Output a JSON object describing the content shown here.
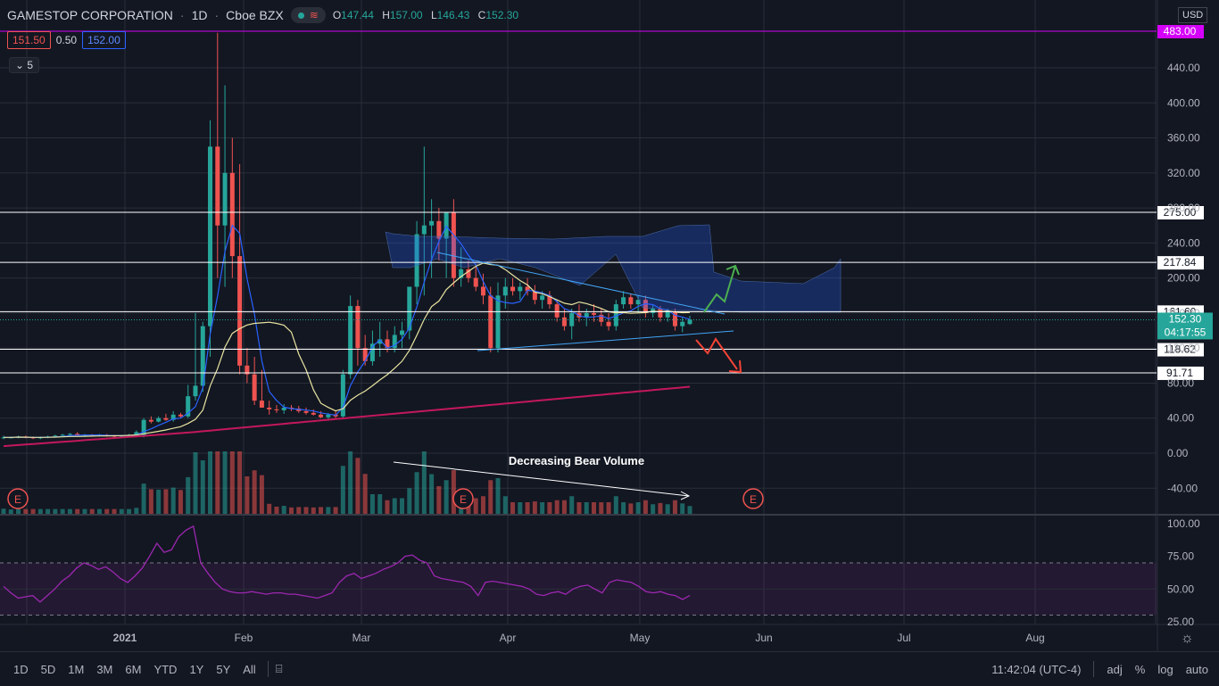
{
  "header": {
    "symbol": "GAMESTOP CORPORATION",
    "interval": "1D",
    "exchange": "Cboe BZX",
    "ohlc": {
      "o_label": "O",
      "o": "147.44",
      "h_label": "H",
      "h": "157.00",
      "l_label": "L",
      "l": "146.43",
      "c_label": "C",
      "c": "152.30"
    }
  },
  "quote": {
    "bid": "151.50",
    "spread": "0.50",
    "ask": "152.00"
  },
  "indicators_collapsed_count": "5",
  "currency": "USD",
  "colors": {
    "background": "#131722",
    "up": "#26a69a",
    "down": "#ef5350",
    "grid": "#2a2e39",
    "ma_fast": "#2962ff",
    "ma_mid": "#e8e4a0",
    "ma_slow": "#c2185b",
    "rsi": "#9c27b0",
    "annotation_up": "#4caf50",
    "annotation_down": "#f44336"
  },
  "annotation": "Decreasing Bear Volume",
  "earnings_marker": "E",
  "chart_data": {
    "type": "candlestick",
    "price_axis": {
      "ticks": [
        "440.00",
        "400.00",
        "360.00",
        "320.00",
        "280.00",
        "240.00",
        "200.00",
        "160.00",
        "120.00",
        "80.00",
        "40.00",
        "0.00",
        "-40.00"
      ],
      "range": [
        -70,
        500
      ]
    },
    "horizontal_levels": [
      {
        "label": "483.00",
        "color": "#d500f9"
      },
      {
        "label": "275.00",
        "color": "#ffffff"
      },
      {
        "label": "217.84",
        "color": "#ffffff"
      },
      {
        "label": "161.60",
        "color": "#ffffff"
      },
      {
        "label": "118.62",
        "color": "#ffffff"
      },
      {
        "label": "91.71",
        "color": "#ffffff"
      }
    ],
    "last_price": {
      "value": "152.30",
      "countdown": "04:17:55"
    },
    "rsi_axis": {
      "ticks": [
        "100.00",
        "75.00",
        "50.00",
        "25.00"
      ],
      "overbought": 70,
      "oversold": 30
    },
    "time_axis": [
      "2021",
      "Feb",
      "Mar",
      "Apr",
      "May",
      "Jun",
      "Jul",
      "Aug"
    ],
    "series": [
      {
        "name": "GME daily",
        "values": [
          {
            "o": 17,
            "h": 20,
            "l": 16,
            "c": 18
          },
          {
            "o": 18,
            "h": 19,
            "l": 17,
            "c": 18
          },
          {
            "o": 18,
            "h": 20,
            "l": 17,
            "c": 19
          },
          {
            "o": 19,
            "h": 20,
            "l": 17,
            "c": 18
          },
          {
            "o": 18,
            "h": 19,
            "l": 16,
            "c": 17
          },
          {
            "o": 17,
            "h": 19,
            "l": 16,
            "c": 18
          },
          {
            "o": 18,
            "h": 20,
            "l": 17,
            "c": 19
          },
          {
            "o": 19,
            "h": 21,
            "l": 18,
            "c": 20
          },
          {
            "o": 20,
            "h": 22,
            "l": 19,
            "c": 21
          },
          {
            "o": 21,
            "h": 23,
            "l": 20,
            "c": 22
          },
          {
            "o": 22,
            "h": 24,
            "l": 21,
            "c": 20
          },
          {
            "o": 20,
            "h": 22,
            "l": 19,
            "c": 21
          },
          {
            "o": 21,
            "h": 22,
            "l": 19,
            "c": 20
          },
          {
            "o": 20,
            "h": 22,
            "l": 19,
            "c": 21
          },
          {
            "o": 21,
            "h": 22,
            "l": 19,
            "c": 20
          },
          {
            "o": 20,
            "h": 21,
            "l": 18,
            "c": 19
          },
          {
            "o": 19,
            "h": 21,
            "l": 18,
            "c": 20
          },
          {
            "o": 20,
            "h": 22,
            "l": 19,
            "c": 21
          },
          {
            "o": 21,
            "h": 26,
            "l": 20,
            "c": 24
          },
          {
            "o": 19,
            "h": 40,
            "l": 18,
            "c": 38
          },
          {
            "o": 38,
            "h": 42,
            "l": 34,
            "c": 36
          },
          {
            "o": 36,
            "h": 42,
            "l": 35,
            "c": 40
          },
          {
            "o": 40,
            "h": 45,
            "l": 37,
            "c": 38
          },
          {
            "o": 38,
            "h": 48,
            "l": 36,
            "c": 44
          },
          {
            "o": 44,
            "h": 46,
            "l": 40,
            "c": 42
          },
          {
            "o": 42,
            "h": 78,
            "l": 40,
            "c": 65
          },
          {
            "o": 65,
            "h": 160,
            "l": 60,
            "c": 77
          },
          {
            "o": 77,
            "h": 150,
            "l": 70,
            "c": 145
          },
          {
            "o": 145,
            "h": 380,
            "l": 110,
            "c": 350
          },
          {
            "o": 350,
            "h": 480,
            "l": 200,
            "c": 260
          },
          {
            "o": 260,
            "h": 420,
            "l": 190,
            "c": 320
          },
          {
            "o": 320,
            "h": 360,
            "l": 200,
            "c": 225
          },
          {
            "o": 225,
            "h": 330,
            "l": 90,
            "c": 100
          },
          {
            "o": 100,
            "h": 120,
            "l": 80,
            "c": 90
          },
          {
            "o": 90,
            "h": 110,
            "l": 55,
            "c": 60
          },
          {
            "o": 60,
            "h": 95,
            "l": 52,
            "c": 52
          },
          {
            "o": 52,
            "h": 60,
            "l": 44,
            "c": 50
          },
          {
            "o": 50,
            "h": 55,
            "l": 46,
            "c": 49
          },
          {
            "o": 49,
            "h": 56,
            "l": 45,
            "c": 52
          },
          {
            "o": 52,
            "h": 55,
            "l": 48,
            "c": 51
          },
          {
            "o": 51,
            "h": 54,
            "l": 46,
            "c": 48
          },
          {
            "o": 48,
            "h": 52,
            "l": 44,
            "c": 46
          },
          {
            "o": 46,
            "h": 50,
            "l": 43,
            "c": 44
          },
          {
            "o": 44,
            "h": 48,
            "l": 40,
            "c": 41
          },
          {
            "o": 41,
            "h": 46,
            "l": 38,
            "c": 44
          },
          {
            "o": 44,
            "h": 48,
            "l": 40,
            "c": 42
          },
          {
            "o": 42,
            "h": 95,
            "l": 40,
            "c": 90
          },
          {
            "o": 90,
            "h": 180,
            "l": 85,
            "c": 168
          },
          {
            "o": 168,
            "h": 175,
            "l": 100,
            "c": 120
          },
          {
            "o": 120,
            "h": 135,
            "l": 100,
            "c": 105
          },
          {
            "o": 105,
            "h": 140,
            "l": 100,
            "c": 125
          },
          {
            "o": 125,
            "h": 150,
            "l": 110,
            "c": 130
          },
          {
            "o": 130,
            "h": 140,
            "l": 115,
            "c": 120
          },
          {
            "o": 120,
            "h": 145,
            "l": 115,
            "c": 135
          },
          {
            "o": 135,
            "h": 150,
            "l": 120,
            "c": 140
          },
          {
            "o": 140,
            "h": 185,
            "l": 130,
            "c": 190
          },
          {
            "o": 190,
            "h": 265,
            "l": 170,
            "c": 250
          },
          {
            "o": 250,
            "h": 350,
            "l": 180,
            "c": 260
          },
          {
            "o": 260,
            "h": 290,
            "l": 200,
            "c": 265
          },
          {
            "o": 265,
            "h": 280,
            "l": 220,
            "c": 245
          },
          {
            "o": 245,
            "h": 275,
            "l": 200,
            "c": 275
          },
          {
            "o": 275,
            "h": 290,
            "l": 190,
            "c": 200
          },
          {
            "o": 200,
            "h": 235,
            "l": 190,
            "c": 210
          },
          {
            "o": 210,
            "h": 220,
            "l": 195,
            "c": 200
          },
          {
            "o": 200,
            "h": 215,
            "l": 185,
            "c": 190
          },
          {
            "o": 190,
            "h": 205,
            "l": 170,
            "c": 180
          },
          {
            "o": 180,
            "h": 190,
            "l": 115,
            "c": 120
          },
          {
            "o": 120,
            "h": 195,
            "l": 115,
            "c": 180
          },
          {
            "o": 180,
            "h": 200,
            "l": 165,
            "c": 190
          },
          {
            "o": 190,
            "h": 200,
            "l": 180,
            "c": 185
          },
          {
            "o": 185,
            "h": 195,
            "l": 175,
            "c": 190
          },
          {
            "o": 190,
            "h": 200,
            "l": 180,
            "c": 185
          },
          {
            "o": 185,
            "h": 192,
            "l": 170,
            "c": 175
          },
          {
            "o": 175,
            "h": 185,
            "l": 165,
            "c": 180
          },
          {
            "o": 180,
            "h": 185,
            "l": 165,
            "c": 170
          },
          {
            "o": 170,
            "h": 175,
            "l": 150,
            "c": 155
          },
          {
            "o": 155,
            "h": 165,
            "l": 140,
            "c": 145
          },
          {
            "o": 145,
            "h": 165,
            "l": 130,
            "c": 160
          },
          {
            "o": 160,
            "h": 170,
            "l": 150,
            "c": 155
          },
          {
            "o": 155,
            "h": 165,
            "l": 145,
            "c": 160
          },
          {
            "o": 160,
            "h": 170,
            "l": 150,
            "c": 158
          },
          {
            "o": 158,
            "h": 165,
            "l": 145,
            "c": 150
          },
          {
            "o": 150,
            "h": 160,
            "l": 140,
            "c": 145
          },
          {
            "o": 145,
            "h": 175,
            "l": 140,
            "c": 170
          },
          {
            "o": 170,
            "h": 185,
            "l": 165,
            "c": 178
          },
          {
            "o": 178,
            "h": 182,
            "l": 165,
            "c": 170
          },
          {
            "o": 170,
            "h": 180,
            "l": 160,
            "c": 175
          },
          {
            "o": 175,
            "h": 180,
            "l": 155,
            "c": 160
          },
          {
            "o": 160,
            "h": 170,
            "l": 155,
            "c": 165
          },
          {
            "o": 165,
            "h": 168,
            "l": 150,
            "c": 155
          },
          {
            "o": 155,
            "h": 165,
            "l": 150,
            "c": 162
          },
          {
            "o": 162,
            "h": 165,
            "l": 140,
            "c": 145
          },
          {
            "o": 145,
            "h": 155,
            "l": 138,
            "c": 150
          },
          {
            "o": 147.44,
            "h": 157,
            "l": 146.43,
            "c": 152.3
          }
        ]
      }
    ],
    "volume_note": "volume histogram below price",
    "rsi": [
      52,
      47,
      43,
      44,
      45,
      40,
      45,
      50,
      56,
      60,
      66,
      70,
      68,
      65,
      67,
      63,
      58,
      55,
      60,
      66,
      75,
      85,
      78,
      80,
      90,
      95,
      98,
      70,
      62,
      55,
      50,
      48,
      47,
      47,
      48,
      47,
      46,
      47,
      47,
      46,
      46,
      45,
      44,
      43,
      45,
      47,
      55,
      60,
      62,
      58,
      60,
      62,
      65,
      67,
      70,
      75,
      76,
      72,
      70,
      60,
      58,
      57,
      56,
      55,
      52,
      45,
      55,
      56,
      55,
      54,
      53,
      52,
      50,
      46,
      45,
      47,
      48,
      46,
      50,
      52,
      53,
      50,
      47,
      55,
      57,
      56,
      55,
      52,
      48,
      47,
      48,
      46,
      45,
      42,
      45
    ]
  }
}
